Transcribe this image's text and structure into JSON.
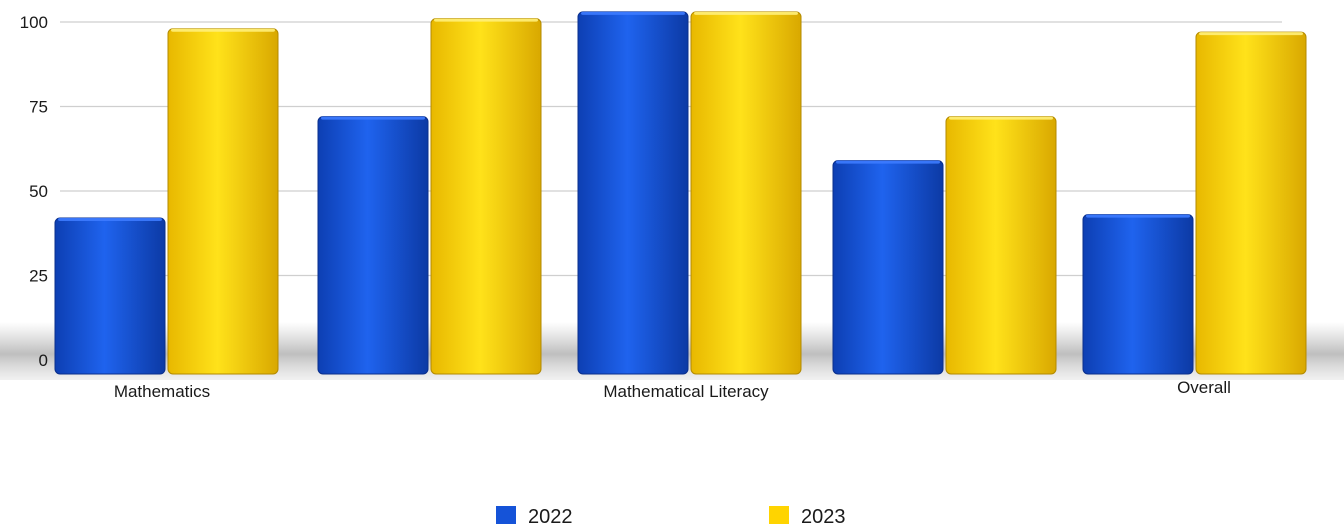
{
  "chart_data": {
    "type": "bar",
    "title": "",
    "xlabel": "",
    "ylabel": "",
    "ylim": [
      0,
      100
    ],
    "yticks": [
      "0",
      "25",
      "50",
      "75",
      "100"
    ],
    "category_labels": [
      "Mathematics",
      "",
      "Mathematical Literacy",
      "",
      "Overall"
    ],
    "series": [
      {
        "name": "2022",
        "color": "#1553d8",
        "values": [
          42,
          72,
          103,
          59,
          43
        ]
      },
      {
        "name": "2023",
        "color": "#ffd400",
        "values": [
          98,
          101,
          103,
          72,
          97
        ]
      }
    ],
    "grid": true,
    "legend_position": "bottom"
  }
}
